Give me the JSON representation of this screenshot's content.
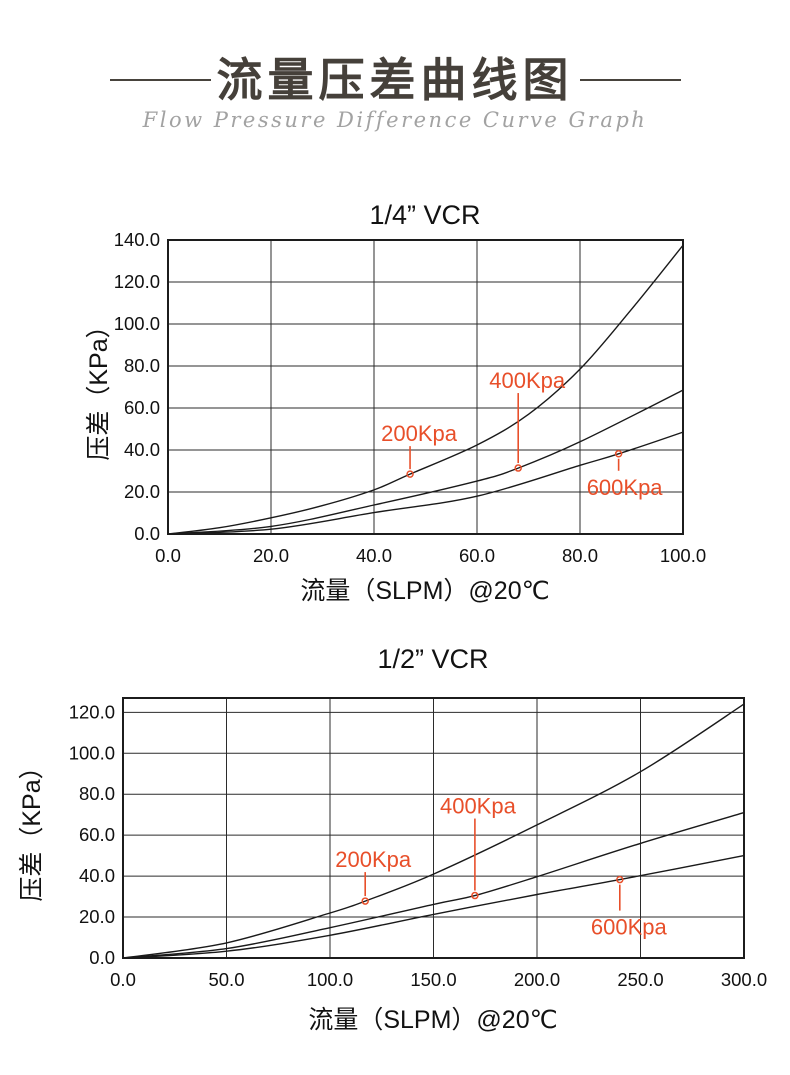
{
  "page": {
    "title": "流量压差曲线图",
    "subtitle": "Flow Pressure Difference Curve Graph"
  },
  "colors": {
    "annotation": "#e84f2a",
    "curve": "#1a1a1a",
    "grid": "#2b2b2b",
    "title_text": "#45403a",
    "subtitle_text": "#a2a2a2",
    "tick_text": "#111111"
  },
  "chart_data": [
    {
      "type": "line",
      "title": "1/4” VCR",
      "xlabel": "流量（SLPM）@20℃",
      "ylabel": "压差（KPa）",
      "xlim": [
        0,
        100
      ],
      "ylim": [
        0,
        140
      ],
      "xticks": [
        0,
        20,
        40,
        60,
        80,
        100
      ],
      "yticks": [
        0,
        20,
        40,
        60,
        80,
        100,
        120,
        140
      ],
      "grid": true,
      "legend_position": "none",
      "series": [
        {
          "name": "200Kpa",
          "points": [
            [
              0,
              0
            ],
            [
              10,
              3
            ],
            [
              20,
              7.7
            ],
            [
              30,
              13.5
            ],
            [
              40,
              21
            ],
            [
              47,
              28.5
            ],
            [
              60,
              42.4
            ],
            [
              70,
              57
            ],
            [
              80,
              78.5
            ],
            [
              90,
              107
            ],
            [
              100,
              137.5
            ]
          ]
        },
        {
          "name": "400Kpa",
          "points": [
            [
              0,
              0
            ],
            [
              20,
              3.6
            ],
            [
              40,
              13.8
            ],
            [
              60,
              25.2
            ],
            [
              68,
              31.4
            ],
            [
              80,
              43.9
            ],
            [
              100,
              68.5
            ]
          ]
        },
        {
          "name": "600Kpa",
          "points": [
            [
              0,
              0
            ],
            [
              20,
              2.3
            ],
            [
              40,
              10.2
            ],
            [
              60,
              18
            ],
            [
              80,
              32.7
            ],
            [
              87.5,
              38.2
            ],
            [
              100,
              48.5
            ]
          ]
        }
      ],
      "annotations": [
        {
          "label": "200Kpa",
          "x": 47,
          "y": 28.5,
          "offset": [
            9,
            -41
          ]
        },
        {
          "label": "400Kpa",
          "x": 68,
          "y": 31.4,
          "offset": [
            9,
            -88
          ]
        },
        {
          "label": "600Kpa",
          "x": 87.5,
          "y": 38.2,
          "offset": [
            6,
            37
          ]
        }
      ]
    },
    {
      "type": "line",
      "title": "1/2” VCR",
      "xlabel": "流量（SLPM）@20℃",
      "ylabel": "压差（KPa）",
      "xlim": [
        0,
        300
      ],
      "ylim": [
        0,
        127
      ],
      "xticks": [
        0,
        50,
        100,
        150,
        200,
        250,
        300
      ],
      "yticks": [
        0,
        20,
        40,
        60,
        80,
        100,
        120
      ],
      "grid": true,
      "legend_position": "none",
      "series": [
        {
          "name": "200Kpa",
          "points": [
            [
              0,
              0
            ],
            [
              50,
              7.4
            ],
            [
              100,
              22
            ],
            [
              117,
              27.8
            ],
            [
              150,
              41
            ],
            [
              200,
              65
            ],
            [
              250,
              91
            ],
            [
              300,
              124
            ]
          ]
        },
        {
          "name": "400Kpa",
          "points": [
            [
              0,
              0
            ],
            [
              50,
              4.6
            ],
            [
              100,
              14.8
            ],
            [
              150,
              26.2
            ],
            [
              170,
              30.5
            ],
            [
              200,
              39.7
            ],
            [
              250,
              56
            ],
            [
              300,
              71
            ]
          ]
        },
        {
          "name": "600Kpa",
          "points": [
            [
              0,
              0
            ],
            [
              50,
              3.3
            ],
            [
              100,
              11.1
            ],
            [
              150,
              21.3
            ],
            [
              200,
              31
            ],
            [
              240,
              38.3
            ],
            [
              300,
              50
            ]
          ]
        }
      ],
      "annotations": [
        {
          "label": "200Kpa",
          "x": 117,
          "y": 27.8,
          "offset": [
            8,
            -42
          ]
        },
        {
          "label": "400Kpa",
          "x": 170,
          "y": 30.5,
          "offset": [
            3,
            -90
          ]
        },
        {
          "label": "600Kpa",
          "x": 240,
          "y": 38.3,
          "offset": [
            9,
            51
          ]
        }
      ]
    }
  ]
}
